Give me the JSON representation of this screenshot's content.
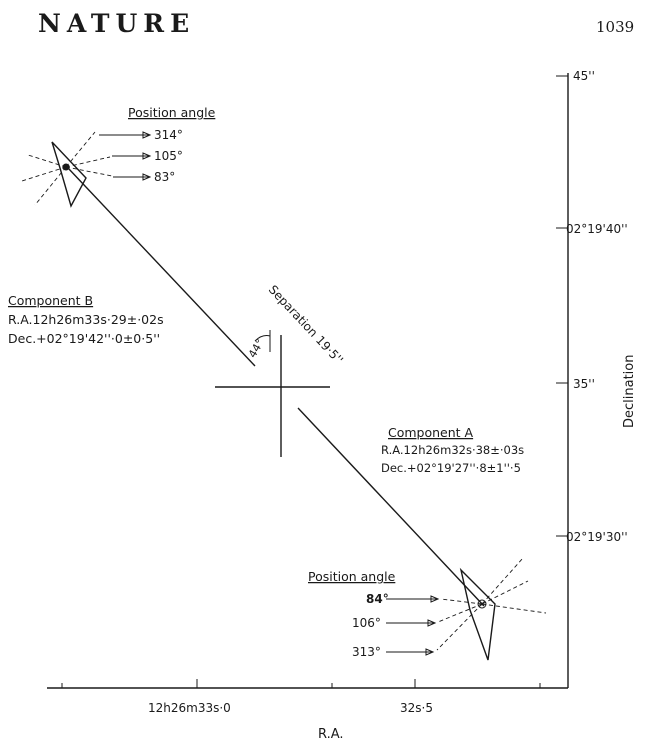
{
  "header": {
    "journal": "NATURE",
    "page_number": "1039"
  },
  "axes": {
    "x_label": "R.A.",
    "x_ticks": [
      "12h26m33s·0",
      "32s·5"
    ],
    "y_label": "Declination",
    "y_ticks": [
      "45''",
      "02°19'40''",
      "35''",
      "02°19'30''"
    ]
  },
  "component_b": {
    "title": "Component B",
    "ra": "R.A.12h26m33s·29±·02s",
    "dec": "Dec.+02°19'42''·0±0·5''",
    "position_angle_title": "Position angle",
    "angles": [
      "314°",
      "105°",
      "83°"
    ]
  },
  "separation": {
    "label": "Separation 19·5''",
    "angle": "44°"
  },
  "component_a": {
    "title": "Component A",
    "ra": "R.A.12h26m32s·38±·03s",
    "dec": "Dec.+02°19'27''·8±1''·5",
    "position_angle_title": "Position angle",
    "angles": [
      "84°",
      "106°",
      "313°"
    ]
  }
}
